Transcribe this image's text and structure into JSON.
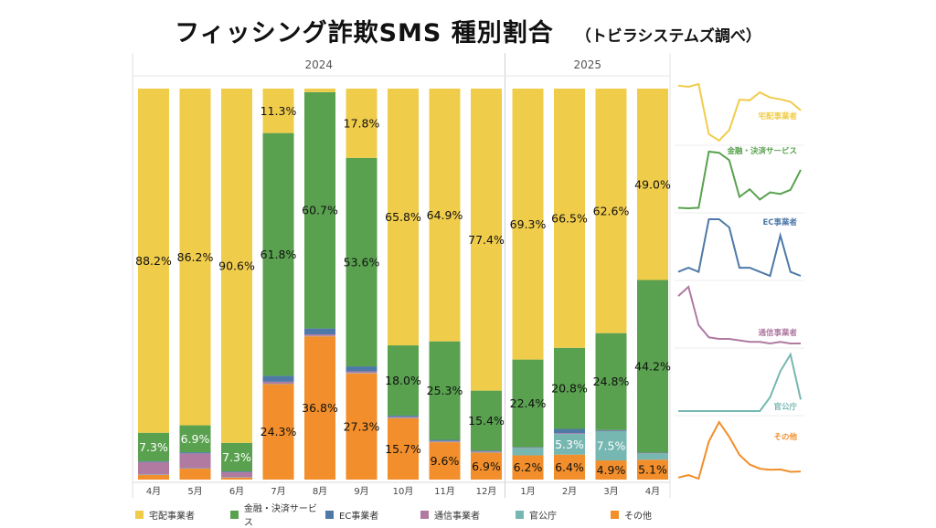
{
  "title": "フィッシング詐欺SMS 種別割合",
  "subtitle": "（トビラシステムズ調べ）",
  "chart_data": {
    "type": "bar",
    "stacked": true,
    "normalized": true,
    "groups": [
      {
        "label": "2024",
        "months": [
          "4月",
          "5月",
          "6月",
          "7月",
          "8月",
          "9月",
          "10月",
          "11月",
          "12月"
        ]
      },
      {
        "label": "2025",
        "months": [
          "1月",
          "2月",
          "3月",
          "4月"
        ]
      }
    ],
    "categories": [
      "4月",
      "5月",
      "6月",
      "7月",
      "8月",
      "9月",
      "10月",
      "11月",
      "12月",
      "1月",
      "2月",
      "3月",
      "4月"
    ],
    "series": [
      {
        "name": "その他",
        "color": "#f28e2b",
        "values": [
          1.2,
          2.8,
          0.5,
          24.3,
          36.8,
          27.3,
          15.7,
          9.6,
          6.9,
          6.2,
          6.4,
          4.9,
          5.1
        ],
        "labels": [
          "",
          "",
          "",
          "24.3%",
          "36.8%",
          "27.3%",
          "15.7%",
          "9.6%",
          "6.9%",
          "6.2%",
          "6.4%",
          "4.9%",
          "5.1%"
        ]
      },
      {
        "name": "官公庁",
        "color": "#76b7b2",
        "values": [
          0.1,
          0.1,
          0.1,
          0.1,
          0.1,
          0.1,
          0.1,
          0.1,
          0.1,
          1.9,
          5.3,
          7.5,
          1.6
        ],
        "labels": [
          "",
          "",
          "",
          "",
          "",
          "",
          "",
          "",
          "",
          "",
          "5.3%",
          "7.5%",
          ""
        ]
      },
      {
        "name": "通信事業者",
        "color": "#b07aa1",
        "values": [
          3.2,
          3.8,
          1.3,
          0.5,
          0.4,
          0.4,
          0.3,
          0.2,
          0.2,
          0.1,
          0.2,
          0.1,
          0.1
        ],
        "labels": [
          "",
          "",
          "",
          "",
          "",
          "",
          "",
          "",
          "",
          "",
          "",
          "",
          ""
        ]
      },
      {
        "name": "EC事業者",
        "color": "#4e79a7",
        "values": [
          0.2,
          0.3,
          0.2,
          1.5,
          1.5,
          1.3,
          0.3,
          0.3,
          0.2,
          0.1,
          1.1,
          0.2,
          0.1
        ],
        "labels": [
          "",
          "",
          "",
          "",
          "",
          "",
          "",
          "",
          "",
          "",
          "",
          "",
          ""
        ]
      },
      {
        "name": "金融・決済サービス",
        "color": "#59a14f",
        "values": [
          7.3,
          6.9,
          7.3,
          61.8,
          60.7,
          53.6,
          18.0,
          25.3,
          15.4,
          22.4,
          20.8,
          24.8,
          44.2
        ],
        "labels": [
          "7.3%",
          "6.9%",
          "7.3%",
          "61.8%",
          "60.7%",
          "53.6%",
          "18.0%",
          "25.3%",
          "15.4%",
          "22.4%",
          "20.8%",
          "24.8%",
          "44.2%"
        ]
      },
      {
        "name": "宅配事業者",
        "color": "#f0cc4b",
        "values": [
          88.2,
          86.2,
          90.6,
          11.3,
          0.9,
          17.8,
          65.8,
          64.9,
          77.4,
          69.3,
          66.5,
          62.6,
          49.0
        ],
        "labels": [
          "88.2%",
          "86.2%",
          "90.6%",
          "11.3%",
          "",
          "17.8%",
          "65.8%",
          "64.9%",
          "77.4%",
          "69.3%",
          "66.5%",
          "62.6%",
          "49.0%"
        ]
      }
    ],
    "label_colors": {
      "dark": "#111111",
      "light": "#ffffff"
    },
    "legend": {
      "position": "bottom",
      "items": [
        {
          "name": "宅配事業者",
          "color": "#f0cc4b"
        },
        {
          "name": "金融・決済サービス",
          "color": "#59a14f"
        },
        {
          "name": "EC事業者",
          "color": "#4e79a7"
        },
        {
          "name": "通信事業者",
          "color": "#b07aa1"
        },
        {
          "name": "官公庁",
          "color": "#76b7b2"
        },
        {
          "name": "その他",
          "color": "#f28e2b"
        }
      ]
    },
    "sparklines": [
      {
        "name": "宅配事業者",
        "color": "#f0cc4b",
        "values": [
          88.2,
          86.2,
          90.6,
          11.3,
          0.9,
          17.8,
          65.8,
          64.9,
          77.4,
          69.3,
          66.5,
          62.6,
          49.0
        ]
      },
      {
        "name": "金融・決済サービス",
        "color": "#59a14f",
        "values": [
          7.3,
          6.9,
          7.3,
          61.8,
          60.7,
          53.6,
          18.0,
          25.3,
          15.4,
          22.4,
          20.8,
          24.8,
          44.2
        ]
      },
      {
        "name": "EC事業者",
        "color": "#4e79a7",
        "values": [
          0.2,
          0.3,
          0.2,
          1.5,
          1.5,
          1.3,
          0.3,
          0.3,
          0.2,
          0.1,
          1.1,
          0.2,
          0.1
        ]
      },
      {
        "name": "通信事業者",
        "color": "#b07aa1",
        "values": [
          3.2,
          3.8,
          1.3,
          0.5,
          0.4,
          0.4,
          0.3,
          0.2,
          0.2,
          0.1,
          0.2,
          0.1,
          0.1
        ]
      },
      {
        "name": "官公庁",
        "color": "#76b7b2",
        "values": [
          0.1,
          0.1,
          0.1,
          0.1,
          0.1,
          0.1,
          0.1,
          0.1,
          0.1,
          1.9,
          5.3,
          7.5,
          1.6
        ]
      },
      {
        "name": "その他",
        "color": "#f28e2b",
        "values": [
          1.2,
          2.8,
          0.5,
          24.3,
          36.8,
          27.3,
          15.7,
          9.6,
          6.9,
          6.2,
          6.4,
          4.9,
          5.1
        ]
      }
    ]
  }
}
